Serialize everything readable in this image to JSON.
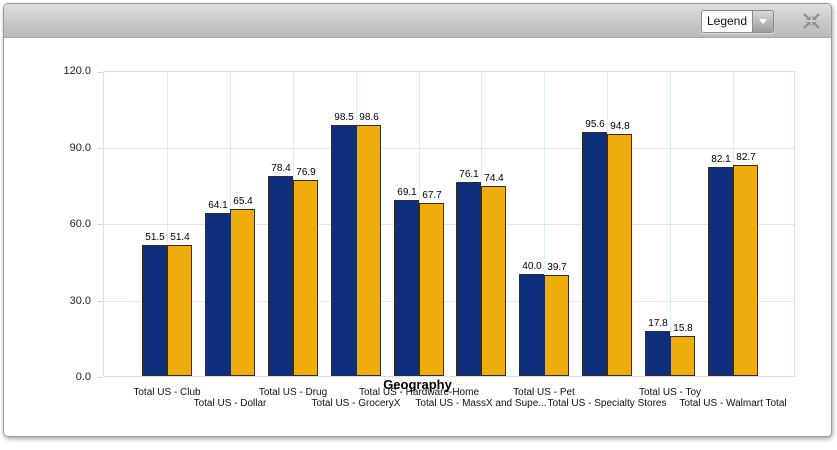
{
  "toolbar": {
    "legend_dropdown_value": "Legend",
    "icons": [
      "dropdown-arrow-icon",
      "collapse-fit-icon"
    ]
  },
  "colors": {
    "navy": "#0d2f7c",
    "gold": "#efac0d",
    "bar_border": "#2e2e2e",
    "grid": "#dde8f5",
    "toolbar_gray": "#c7c7c7"
  },
  "chart_data": {
    "type": "bar",
    "title": "",
    "xlabel": "Geography",
    "ylabel": "",
    "ylim": [
      0,
      120
    ],
    "y_step": 30,
    "y_tick_labels": [
      "0.0",
      "30.0",
      "60.0",
      "90.0",
      "120.0"
    ],
    "grid": true,
    "legend_position": "collapsed-dropdown",
    "categories": [
      "Total US - Club",
      "Total US - Dollar",
      "Total US - Drug",
      "Total US - GroceryX",
      "Total US - Hardware-Home",
      "Total US - MassX and Supe...",
      "Total US - Pet",
      "Total US - Specialty Stores",
      "Total US - Toy",
      "Total US - Walmart Total"
    ],
    "series": [
      {
        "color": "#0d2f7c",
        "values": [
          51.5,
          64.1,
          78.4,
          98.5,
          69.1,
          76.1,
          40.0,
          95.6,
          17.8,
          82.1
        ]
      },
      {
        "color": "#efac0d",
        "values": [
          51.4,
          65.4,
          76.9,
          98.6,
          67.7,
          74.4,
          39.7,
          94.8,
          15.8,
          82.7
        ]
      }
    ],
    "value_labels_shown": true
  }
}
